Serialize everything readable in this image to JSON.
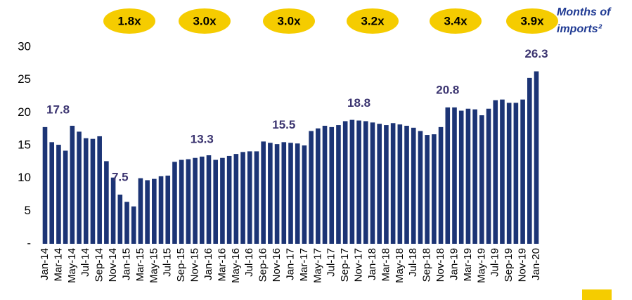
{
  "chart_data": {
    "type": "bar",
    "categories": [
      "Jan-14",
      null,
      "Mar-14",
      null,
      "May-14",
      null,
      "Jul-14",
      null,
      "Sep-14",
      null,
      "Nov-14",
      null,
      "Jan-15",
      null,
      "Mar-15",
      null,
      "May-15",
      null,
      "Jul-15",
      null,
      "Sep-15",
      null,
      "Nov-15",
      null,
      "Jan-16",
      null,
      "Mar-16",
      null,
      "May-16",
      null,
      "Jul-16",
      null,
      "Sep-16",
      null,
      "Nov-16",
      null,
      "Jan-17",
      null,
      "Mar-17",
      null,
      "May-17",
      null,
      "Jul-17",
      null,
      "Sep-17",
      null,
      "Nov-17",
      null,
      "Jan-18",
      null,
      "Mar-18",
      null,
      "May-18",
      null,
      "Jul-18",
      null,
      "Sep-18",
      null,
      "Nov-18",
      null,
      "Jan-19",
      null,
      "Mar-19",
      null,
      "May-19",
      null,
      "Jul-19",
      null,
      "Sep-19",
      null,
      "Nov-19",
      null,
      "Jan-20"
    ],
    "values": [
      17.8,
      15.5,
      15.1,
      14.2,
      18.0,
      17.1,
      16.1,
      16.0,
      16.4,
      12.6,
      10.1,
      7.5,
      6.4,
      5.7,
      10.0,
      9.7,
      9.9,
      10.3,
      10.4,
      12.5,
      12.8,
      12.9,
      13.1,
      13.3,
      13.5,
      12.8,
      13.1,
      13.4,
      13.7,
      14.0,
      14.1,
      14.1,
      15.6,
      15.4,
      15.2,
      15.5,
      15.4,
      15.3,
      15.0,
      17.2,
      17.6,
      18.0,
      17.8,
      18.1,
      18.7,
      18.9,
      18.8,
      18.7,
      18.5,
      18.3,
      18.1,
      18.4,
      18.2,
      18.0,
      17.7,
      17.2,
      16.6,
      16.7,
      17.8,
      20.8,
      20.8,
      20.3,
      20.6,
      20.5,
      19.6,
      20.6,
      21.9,
      22.0,
      21.5,
      21.5,
      22.0,
      25.3,
      26.3
    ],
    "value_labels": [
      "17.8",
      null,
      null,
      null,
      null,
      null,
      null,
      null,
      null,
      null,
      null,
      "7.5",
      null,
      null,
      null,
      null,
      null,
      null,
      null,
      null,
      null,
      null,
      null,
      "13.3",
      null,
      null,
      null,
      null,
      null,
      null,
      null,
      null,
      null,
      null,
      null,
      "15.5",
      null,
      null,
      null,
      null,
      null,
      null,
      null,
      null,
      null,
      null,
      "18.8",
      null,
      null,
      null,
      null,
      null,
      null,
      null,
      null,
      null,
      null,
      null,
      null,
      "20.8",
      null,
      null,
      null,
      null,
      null,
      null,
      null,
      null,
      null,
      null,
      null,
      null,
      "26.3"
    ],
    "color": "#1c3475",
    "ylim": [
      0,
      30
    ],
    "yticks": [
      {
        "value": 0,
        "label": "-"
      },
      5,
      10,
      15,
      20,
      25,
      30
    ],
    "multiples": [
      "1.8x",
      "3.0x",
      "3.0x",
      "3.2x",
      "3.4x",
      "3.9x"
    ],
    "multiples_color": "#f5cc00",
    "legend_text": [
      "Months of",
      "imports²"
    ]
  }
}
